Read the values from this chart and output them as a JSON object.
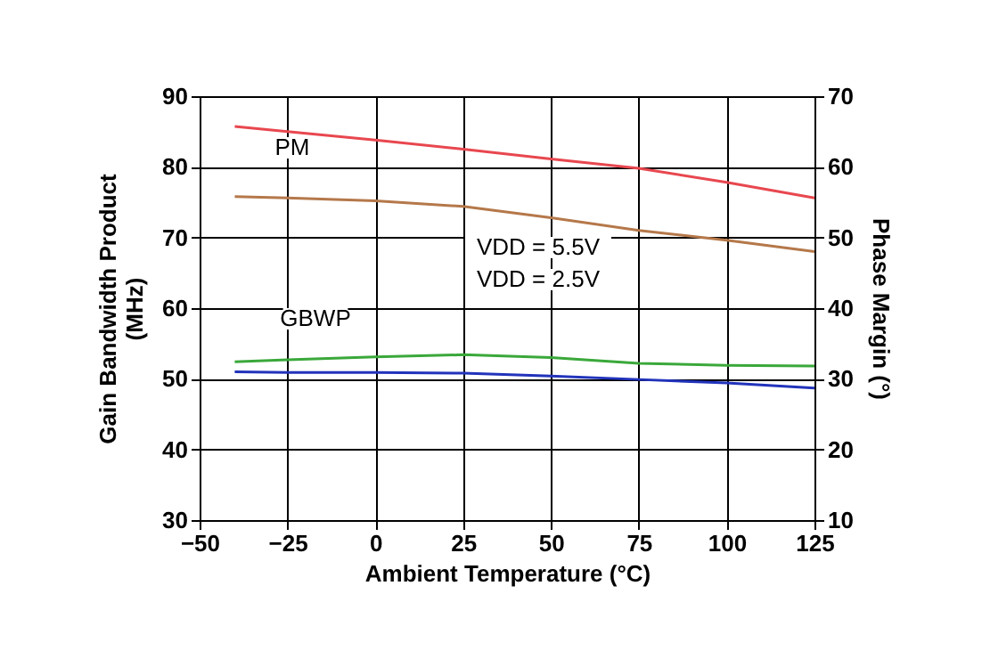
{
  "chart_data": {
    "type": "line",
    "xlabel": "Ambient Temperature (°C)",
    "ylabel": "Gain Bandwidth Product\n(MHz)",
    "y2label": "Phase Margin (°)",
    "x": [
      -40,
      -25,
      0,
      25,
      50,
      75,
      100,
      125
    ],
    "series": [
      {
        "color": "#e8474f",
        "axis": "y2",
        "values": [
          65.7,
          65.0,
          63.8,
          62.5,
          61.1,
          59.8,
          57.8,
          55.6
        ]
      },
      {
        "color": "#b5784a",
        "axis": "y2",
        "values": [
          55.8,
          55.6,
          55.2,
          54.4,
          52.8,
          51.0,
          49.6,
          48.0
        ]
      },
      {
        "color": "#3aa83a",
        "values": [
          52.4,
          52.7,
          53.1,
          53.4,
          53.0,
          52.2,
          51.9,
          51.8
        ]
      },
      {
        "color": "#2233bb",
        "values": [
          51.0,
          50.9,
          50.9,
          50.8,
          50.4,
          49.9,
          49.4,
          48.7
        ]
      }
    ],
    "xlim": [
      -50,
      125
    ],
    "xticks": [
      -50,
      -25,
      0,
      25,
      50,
      75,
      100,
      125
    ],
    "ylim": [
      30,
      90
    ],
    "yticks": [
      30,
      40,
      50,
      60,
      70,
      80,
      90
    ],
    "y2lim": [
      10,
      70
    ],
    "y2ticks": [
      10,
      20,
      30,
      40,
      50,
      60,
      70
    ],
    "annotations": [
      "PM",
      "GBWP",
      "VDD = 5.5V",
      "VDD = 2.5V"
    ],
    "grid": true,
    "marker": "none",
    "line_style": "solid"
  }
}
